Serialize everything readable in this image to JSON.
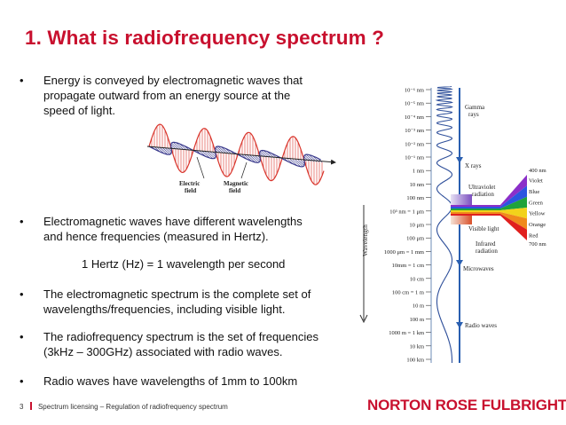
{
  "slide": {
    "title": "1.  What is radiofrequency spectrum ?",
    "bullets": [
      {
        "lines": [
          "Energy is conveyed by electromagnetic waves that",
          "propagate outward from an energy source at the",
          "speed of light."
        ]
      },
      {
        "lines": [
          "Electromagnetic waves have different wavelengths",
          "and hence frequencies (measured in Hertz)."
        ]
      },
      {
        "lines": [
          "The electromagnetic spectrum is the complete set of",
          "wavelengths/frequencies, including visible light."
        ]
      },
      {
        "lines": [
          "The radiofrequency spectrum is the set of frequencies",
          "(3kHz – 300GHz) associated with radio waves."
        ]
      },
      {
        "lines": [
          "Radio waves have wavelengths of 1mm to 100km"
        ]
      }
    ],
    "bullet_symbol": "•",
    "hertz_definition": "1 Hertz (Hz) = 1 wavelength per second"
  },
  "wave_figure": {
    "electric_label_1": "Electric",
    "electric_label_2": "field",
    "magnetic_label_1": "Magnetic",
    "magnetic_label_2": "field",
    "colors": {
      "electric": "#d9342b",
      "magnetic": "#3a3a8c"
    }
  },
  "spectrum_figure": {
    "axis_label": "Wavelength",
    "ticks": [
      "10⁻⁶ nm",
      "10⁻⁵ nm",
      "10⁻⁴ nm",
      "10⁻³ nm",
      "10⁻² nm",
      "10⁻¹ nm",
      "1 nm",
      "10 nm",
      "100 nm",
      "10³ nm = 1 μm",
      "10 μm",
      "100 μm",
      "1000 μm = 1 mm",
      "10mm = 1 cm",
      "10 cm",
      "100 cm = 1 m",
      "10 m",
      "100 m",
      "1000 m = 1 km",
      "10 km",
      "100 km"
    ],
    "regions": {
      "gamma_1": "Gamma",
      "gamma_2": "rays",
      "xrays": "X rays",
      "uv_1": "Ultraviolet",
      "uv_2": "radiation",
      "visible": "Visible light",
      "ir_1": "Infrared",
      "ir_2": "radiation",
      "microwaves": "Microwaves",
      "radio": "Radio waves"
    },
    "visible_top": "400 nm",
    "visible_bottom": "700 nm",
    "colors": [
      {
        "name": "Violet",
        "hex": "#8b2fc9"
      },
      {
        "name": "Blue",
        "hex": "#2b55e0"
      },
      {
        "name": "Green",
        "hex": "#1fa33a"
      },
      {
        "name": "Yellow",
        "hex": "#f2d21b"
      },
      {
        "name": "Orange",
        "hex": "#f08a1c"
      },
      {
        "name": "Red",
        "hex": "#e0201e"
      }
    ]
  },
  "footer": {
    "page_number": "3",
    "text": "Spectrum licensing – Regulation of radiofrequency spectrum"
  },
  "brand": {
    "name": "NORTON ROSE FULBRIGHT",
    "color": "#c8102e"
  }
}
